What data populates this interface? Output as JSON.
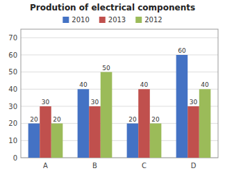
{
  "chart_data": {
    "type": "bar",
    "title": "Prodution of electrical components",
    "categories": [
      "A",
      "B",
      "C",
      "D"
    ],
    "series": [
      {
        "name": "2010",
        "color": "#4472C4",
        "values": [
          20,
          40,
          20,
          60
        ]
      },
      {
        "name": "2013",
        "color": "#C0504D",
        "values": [
          30,
          30,
          40,
          30
        ]
      },
      {
        "name": "2012",
        "color": "#9BBB59",
        "values": [
          20,
          50,
          20,
          40
        ]
      }
    ],
    "ylim": [
      0,
      75
    ],
    "yticks": [
      0,
      10,
      20,
      30,
      40,
      50,
      60,
      70
    ],
    "grid": true,
    "legend": "top",
    "data_labels": true
  }
}
